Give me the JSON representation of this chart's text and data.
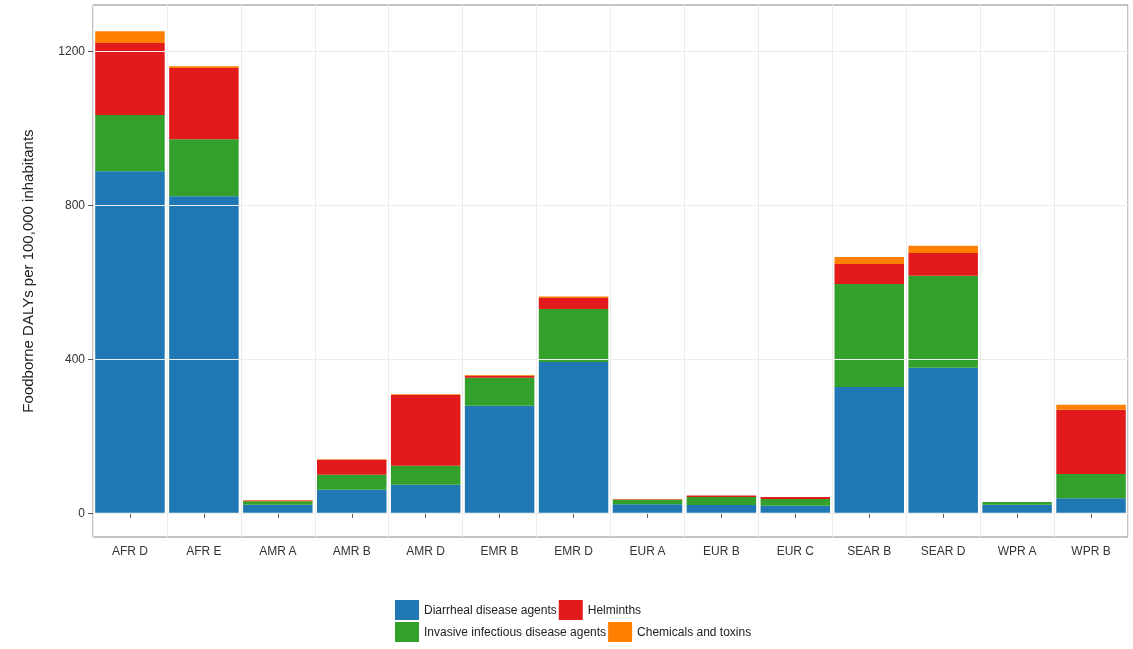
{
  "chart_data": {
    "type": "bar",
    "stacked": true,
    "ylabel": "Foodborne DALYs per 100,000 inhabitants",
    "categories": [
      "AFR D",
      "AFR E",
      "AMR A",
      "AMR B",
      "AMR D",
      "EMR B",
      "EMR D",
      "EUR A",
      "EUR B",
      "EUR C",
      "SEAR B",
      "SEAR D",
      "WPR A",
      "WPR B"
    ],
    "series": [
      {
        "name": "Diarrheal disease agents",
        "color": "#1f78b4",
        "values": [
          888,
          823,
          21,
          60,
          73,
          278,
          392,
          22,
          20,
          18,
          327,
          377,
          21,
          38
        ]
      },
      {
        "name": "Invasive infectious disease agents",
        "color": "#33a02c",
        "values": [
          146,
          148,
          9,
          39,
          49,
          73,
          138,
          12,
          21,
          18,
          268,
          239,
          7,
          63
        ]
      },
      {
        "name": "Helminths",
        "color": "#e31a1c",
        "values": [
          187,
          185,
          2,
          39,
          184,
          5,
          28,
          1,
          4,
          5,
          52,
          59,
          null,
          167
        ]
      },
      {
        "name": "Chemicals and toxins",
        "color": "#ff7f00",
        "values": [
          31,
          5,
          1,
          1,
          2,
          2,
          4,
          1,
          null,
          null,
          18,
          19,
          null,
          13
        ]
      }
    ],
    "ylim": [
      -63,
      1320
    ],
    "yticks": [
      0,
      400,
      800,
      1200
    ],
    "grid": true,
    "legend": "bottom"
  }
}
